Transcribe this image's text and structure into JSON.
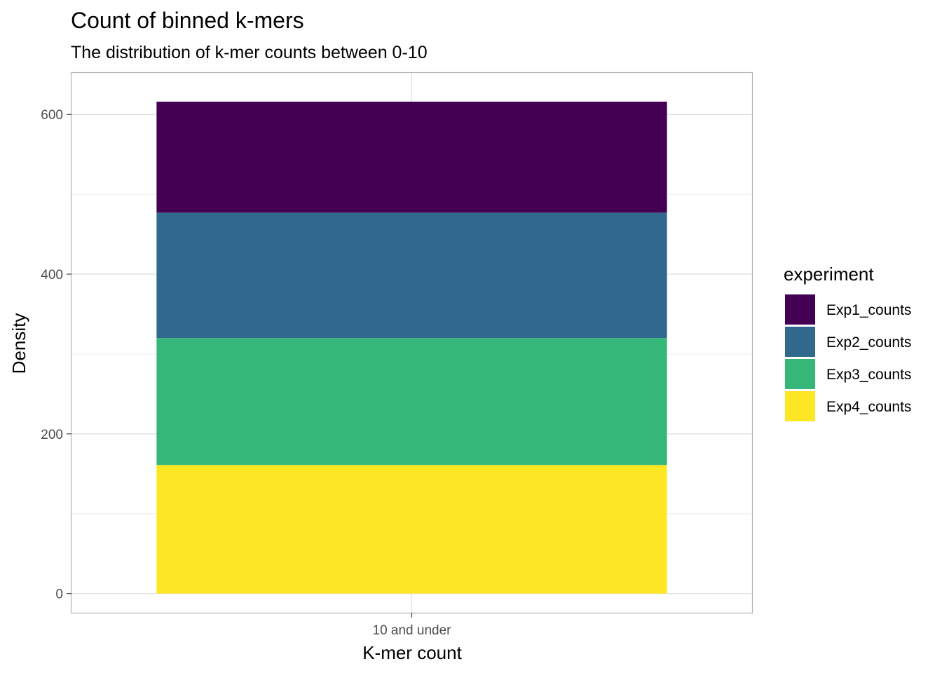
{
  "chart_data": {
    "type": "bar",
    "stacked": true,
    "title": "Count of binned k-mers",
    "subtitle": "The distribution of k-mer counts between 0-10",
    "xlabel": "K-mer count",
    "ylabel": "Density",
    "categories": [
      "10 and under"
    ],
    "ylim": [
      -24,
      652
    ],
    "yticks": [
      0,
      200,
      400,
      600
    ],
    "grid": true,
    "legend": {
      "title": "experiment",
      "placement": "right"
    },
    "series": [
      {
        "name": "Exp1_counts",
        "values": [
          139
        ],
        "color": "#440154"
      },
      {
        "name": "Exp2_counts",
        "values": [
          157
        ],
        "color": "#31688E"
      },
      {
        "name": "Exp3_counts",
        "values": [
          159
        ],
        "color": "#35B779"
      },
      {
        "name": "Exp4_counts",
        "values": [
          161
        ],
        "color": "#FDE725"
      }
    ]
  }
}
